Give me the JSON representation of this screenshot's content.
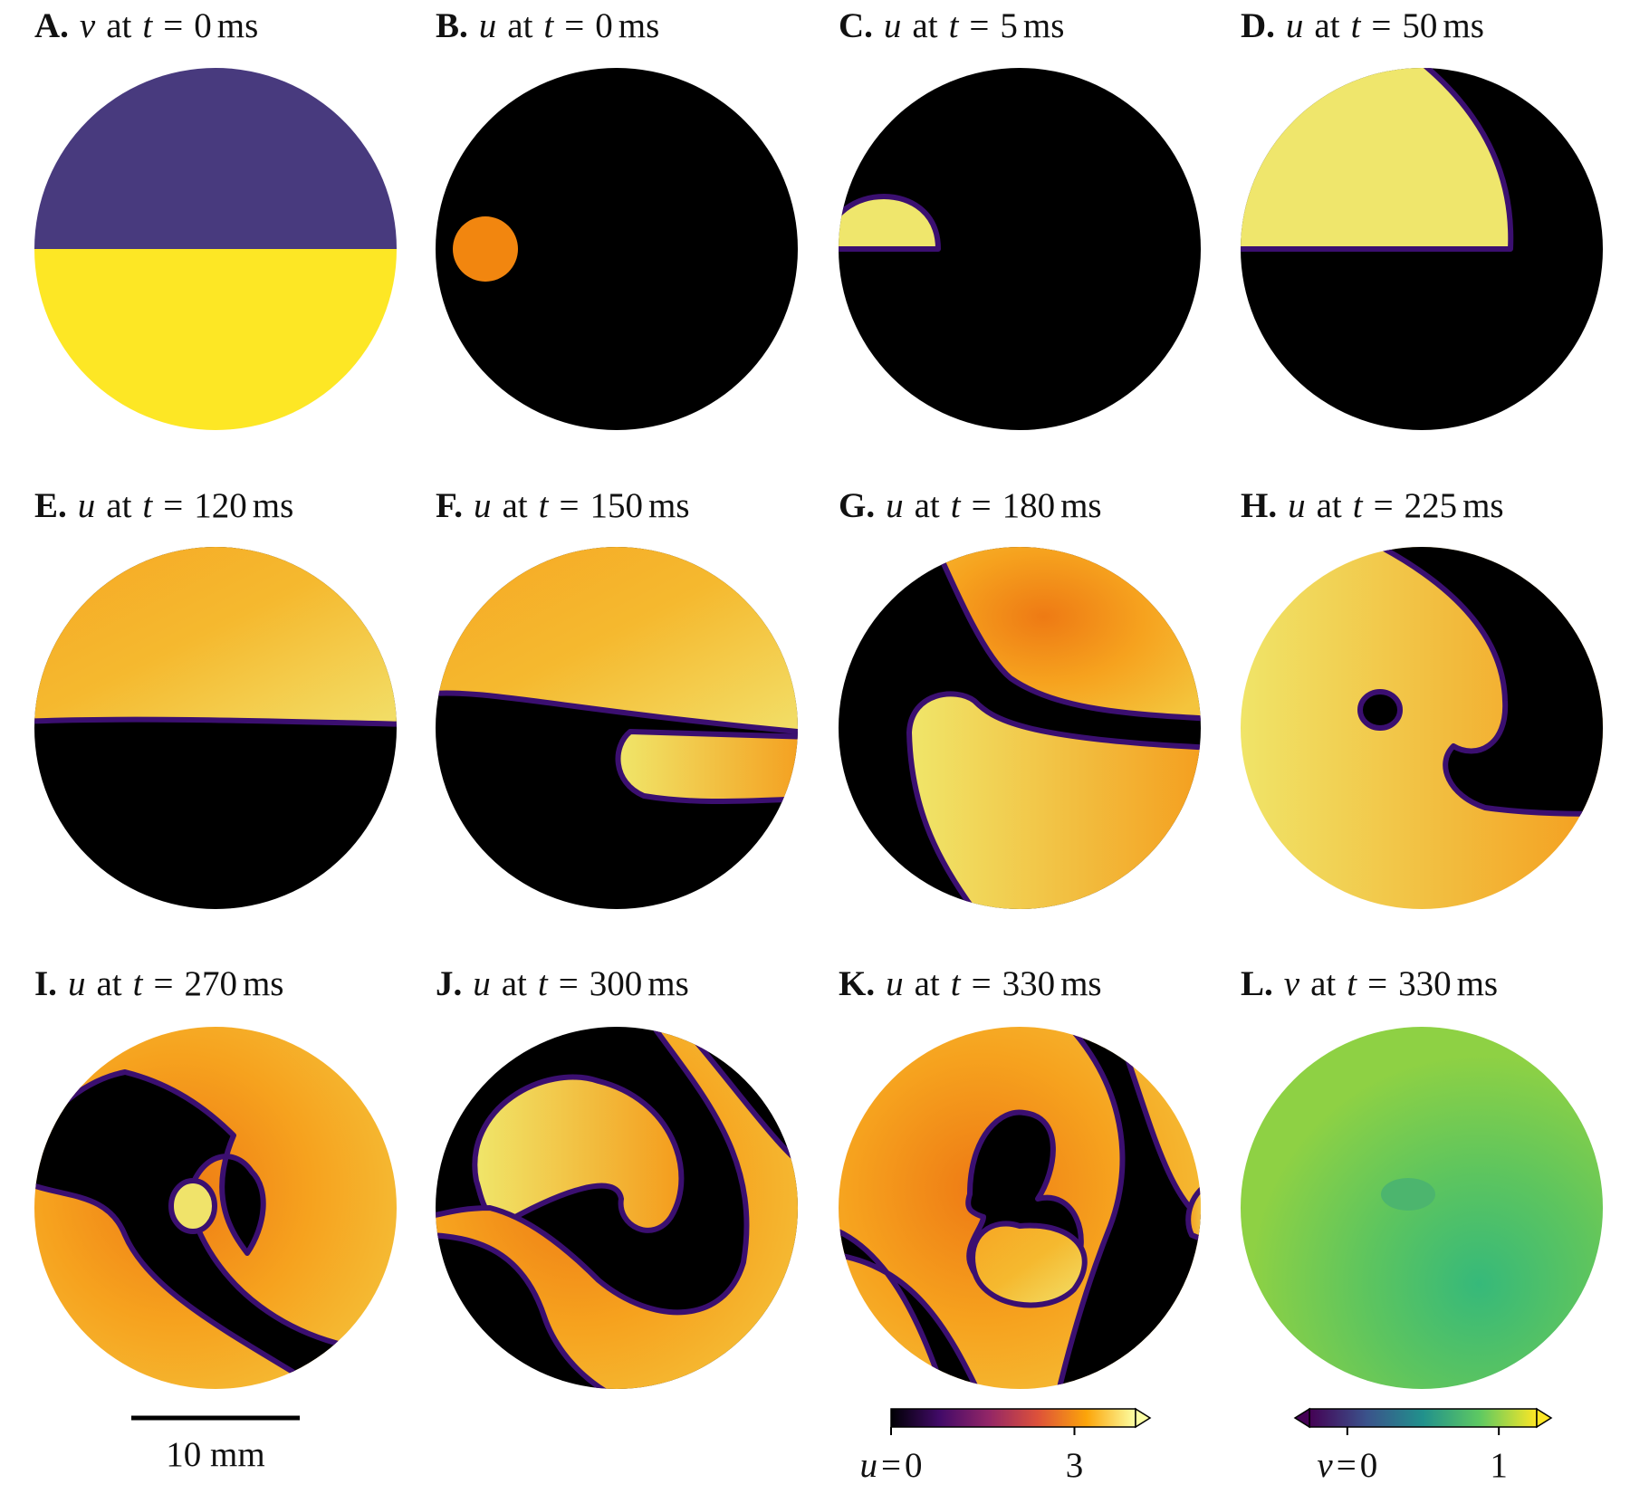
{
  "panels": [
    {
      "label": "A.",
      "variable": "v",
      "at": "at",
      "time_symbol": "t",
      "equals": "=",
      "time": 0,
      "unit": "ms"
    },
    {
      "label": "B.",
      "variable": "u",
      "at": "at",
      "time_symbol": "t",
      "equals": "=",
      "time": 0,
      "unit": "ms"
    },
    {
      "label": "C.",
      "variable": "u",
      "at": "at",
      "time_symbol": "t",
      "equals": "=",
      "time": 5,
      "unit": "ms"
    },
    {
      "label": "D.",
      "variable": "u",
      "at": "at",
      "time_symbol": "t",
      "equals": "=",
      "time": 50,
      "unit": "ms"
    },
    {
      "label": "E.",
      "variable": "u",
      "at": "at",
      "time_symbol": "t",
      "equals": "=",
      "time": 120,
      "unit": "ms"
    },
    {
      "label": "F.",
      "variable": "u",
      "at": "at",
      "time_symbol": "t",
      "equals": "=",
      "time": 150,
      "unit": "ms"
    },
    {
      "label": "G.",
      "variable": "u",
      "at": "at",
      "time_symbol": "t",
      "equals": "=",
      "time": 180,
      "unit": "ms"
    },
    {
      "label": "H.",
      "variable": "u",
      "at": "at",
      "time_symbol": "t",
      "equals": "=",
      "time": 225,
      "unit": "ms"
    },
    {
      "label": "I.",
      "variable": "u",
      "at": "at",
      "time_symbol": "t",
      "equals": "=",
      "time": 270,
      "unit": "ms"
    },
    {
      "label": "J.",
      "variable": "u",
      "at": "at",
      "time_symbol": "t",
      "equals": "=",
      "time": 300,
      "unit": "ms"
    },
    {
      "label": "K.",
      "variable": "u",
      "at": "at",
      "time_symbol": "t",
      "equals": "=",
      "time": 330,
      "unit": "ms"
    },
    {
      "label": "L.",
      "variable": "v",
      "at": "at",
      "time_symbol": "t",
      "equals": "=",
      "time": 330,
      "unit": "ms"
    }
  ],
  "scale_bar": {
    "label": "10 mm"
  },
  "colorbars": [
    {
      "variable": "u",
      "equals": "=",
      "lim": [
        0,
        4
      ],
      "ticks": [
        0,
        3
      ],
      "extend": "max",
      "colormap": "inferno"
    },
    {
      "variable": "v",
      "equals": "=",
      "lim": [
        -0.25,
        1.25
      ],
      "ticks": [
        0,
        1
      ],
      "extend": "both",
      "colormap": "viridis"
    }
  ]
}
